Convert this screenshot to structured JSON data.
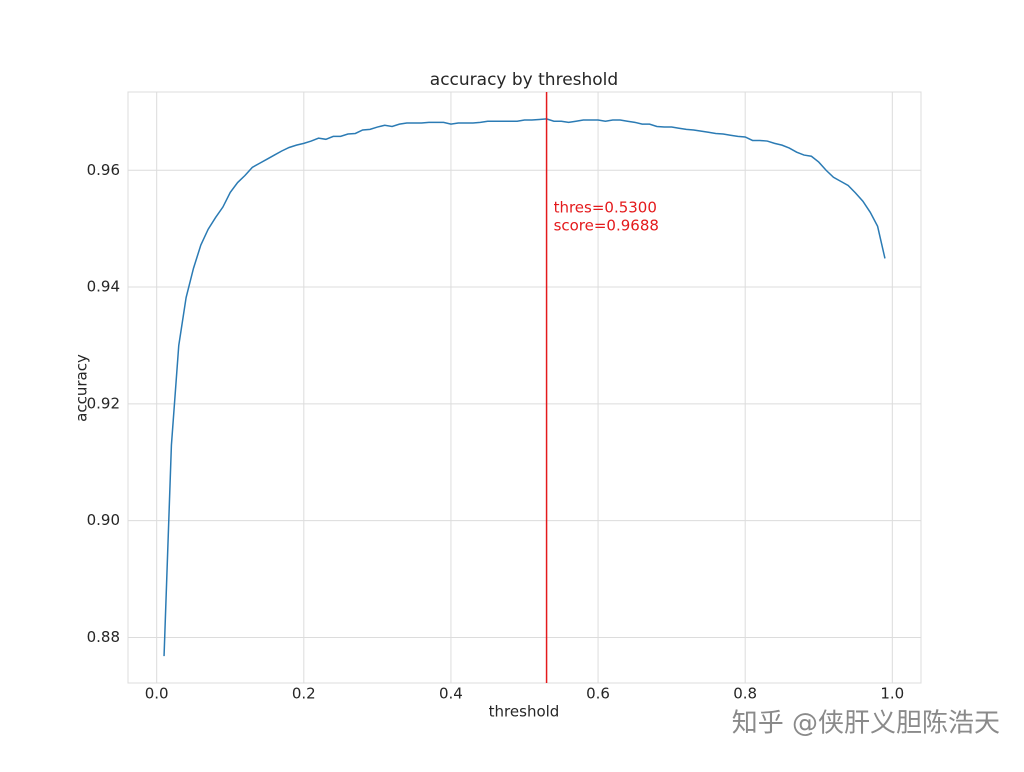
{
  "chart_data": {
    "type": "line",
    "title": "accuracy by threshold",
    "xlabel": "threshold",
    "ylabel": "accuracy",
    "x": [
      0.01,
      0.02,
      0.03,
      0.04,
      0.05,
      0.06,
      0.07,
      0.08,
      0.09,
      0.1,
      0.11,
      0.12,
      0.13,
      0.14,
      0.15,
      0.16,
      0.17,
      0.18,
      0.19,
      0.2,
      0.21,
      0.22,
      0.23,
      0.24,
      0.25,
      0.26,
      0.27,
      0.28,
      0.29,
      0.3,
      0.31,
      0.32,
      0.33,
      0.34,
      0.35,
      0.36,
      0.37,
      0.38,
      0.39,
      0.4,
      0.41,
      0.42,
      0.43,
      0.44,
      0.45,
      0.46,
      0.47,
      0.48,
      0.49,
      0.5,
      0.51,
      0.52,
      0.53,
      0.54,
      0.55,
      0.56,
      0.57,
      0.58,
      0.59,
      0.6,
      0.61,
      0.62,
      0.63,
      0.64,
      0.65,
      0.66,
      0.67,
      0.68,
      0.69,
      0.7,
      0.71,
      0.72,
      0.73,
      0.74,
      0.75,
      0.76,
      0.77,
      0.78,
      0.79,
      0.8,
      0.81,
      0.82,
      0.83,
      0.84,
      0.85,
      0.86,
      0.87,
      0.88,
      0.89,
      0.9,
      0.91,
      0.92,
      0.93,
      0.94,
      0.95,
      0.96,
      0.97,
      0.98,
      0.99
    ],
    "values": [
      0.8768,
      0.9129,
      0.93,
      0.9382,
      0.9432,
      0.9472,
      0.9499,
      0.9519,
      0.9537,
      0.9562,
      0.9579,
      0.9591,
      0.9605,
      0.9612,
      0.9619,
      0.9626,
      0.9633,
      0.9639,
      0.9643,
      0.9646,
      0.965,
      0.9655,
      0.9653,
      0.9658,
      0.9658,
      0.9662,
      0.9663,
      0.9669,
      0.967,
      0.9674,
      0.9677,
      0.9675,
      0.9679,
      0.9681,
      0.9681,
      0.9681,
      0.9682,
      0.9682,
      0.9682,
      0.9679,
      0.9681,
      0.9681,
      0.9681,
      0.9682,
      0.9684,
      0.9684,
      0.9684,
      0.9684,
      0.9684,
      0.9686,
      0.9686,
      0.9687,
      0.9688,
      0.9684,
      0.9684,
      0.9682,
      0.9684,
      0.9686,
      0.9686,
      0.9686,
      0.9684,
      0.9686,
      0.9686,
      0.9684,
      0.9682,
      0.9679,
      0.9679,
      0.9675,
      0.9674,
      0.9674,
      0.9672,
      0.967,
      0.9669,
      0.9667,
      0.9665,
      0.9663,
      0.9662,
      0.966,
      0.9658,
      0.9657,
      0.9651,
      0.9651,
      0.965,
      0.9646,
      0.9643,
      0.9638,
      0.9631,
      0.9626,
      0.9624,
      0.9614,
      0.96,
      0.9588,
      0.9581,
      0.9574,
      0.9561,
      0.9547,
      0.9528,
      0.9504,
      0.9449
    ],
    "color": "#2b7bb4",
    "vline": {
      "x": 0.53,
      "color": "#e41a1c"
    },
    "annotation": [
      "thres=0.5300",
      "score=0.9688"
    ],
    "xlim": [
      -0.039,
      1.039
    ],
    "ylim": [
      0.8722,
      0.9734
    ],
    "xticks": [
      {
        "value": 0,
        "label": "0.0"
      },
      0.2,
      0.4,
      0.6,
      0.8,
      {
        "value": 1,
        "label": "1.0"
      }
    ],
    "yticks": [
      0.88,
      {
        "value": 0.9,
        "label": "0.90"
      },
      0.92,
      0.94,
      0.96
    ],
    "grid": true,
    "watermark": "知乎 @侠肝义胆陈浩天"
  }
}
